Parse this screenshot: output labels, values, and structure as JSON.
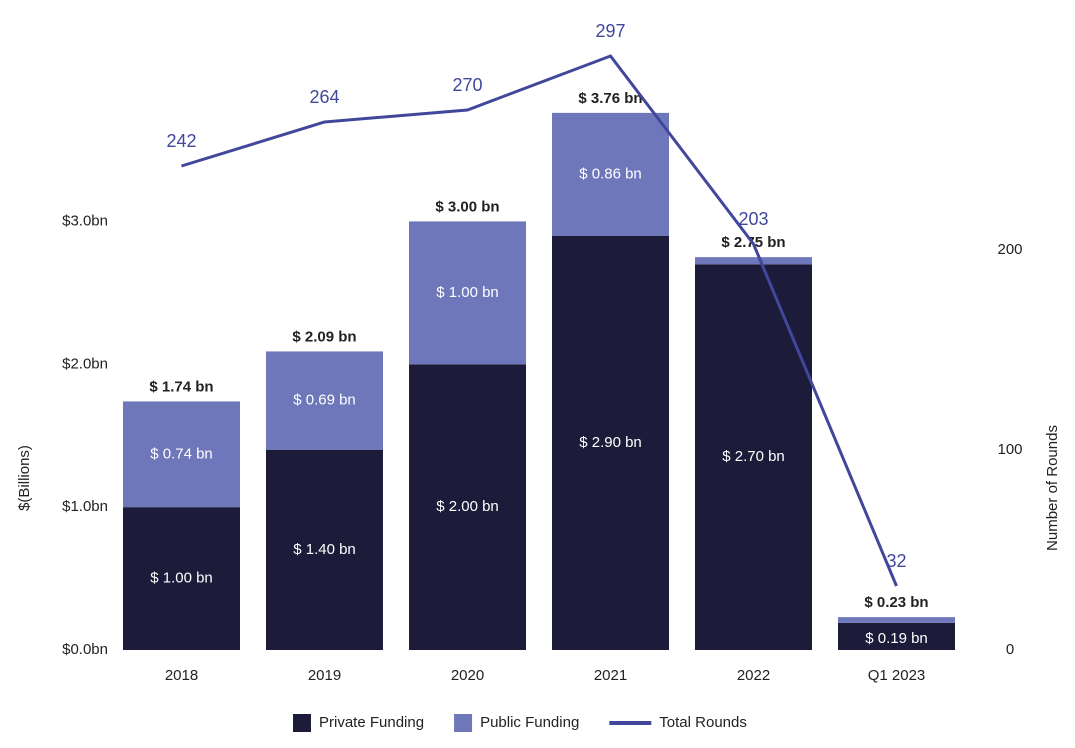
{
  "chart_data": {
    "type": "bar-line",
    "categories": [
      "2018",
      "2019",
      "2020",
      "2021",
      "2022",
      "Q1 2023"
    ],
    "series": [
      {
        "name": "Private Funding",
        "color": "#1c1c3a",
        "values": [
          1.0,
          1.4,
          2.0,
          2.9,
          2.7,
          0.19
        ],
        "value_labels": [
          "$ 1.00 bn",
          "$ 1.40 bn",
          "$ 2.00 bn",
          "$ 2.90 bn",
          "$ 2.70 bn",
          "$ 0.19 bn"
        ]
      },
      {
        "name": "Public Funding",
        "color": "#6f77bb",
        "values": [
          0.74,
          0.69,
          1.0,
          0.86,
          0.05,
          0.04
        ],
        "value_labels": [
          "$ 0.74 bn",
          "$ 0.69 bn",
          "$ 1.00 bn",
          "$ 0.86 bn",
          null,
          null
        ]
      },
      {
        "name": "Total Rounds",
        "color": "#41479a",
        "axis": "y2",
        "values": [
          242,
          264,
          270,
          297,
          203,
          32
        ]
      }
    ],
    "total_labels": [
      "$ 1.74 bn",
      "$ 2.09 bn",
      "$ 3.00 bn",
      "$ 3.76 bn",
      "$ 2.75 bn",
      "$ 0.23 bn"
    ],
    "ylabel": "$(Billions)",
    "y2label": "Number of Rounds",
    "ylim": [
      0,
      4.2
    ],
    "yticks": [
      {
        "value": 0,
        "label": "$0.0bn"
      },
      {
        "value": 1,
        "label": "$1.0bn"
      },
      {
        "value": 2,
        "label": "$2.0bn"
      },
      {
        "value": 3,
        "label": "$3.0bn"
      }
    ],
    "y2lim": [
      0,
      300
    ],
    "y2ticks": [
      0,
      100,
      200
    ],
    "legend": "bottom"
  }
}
